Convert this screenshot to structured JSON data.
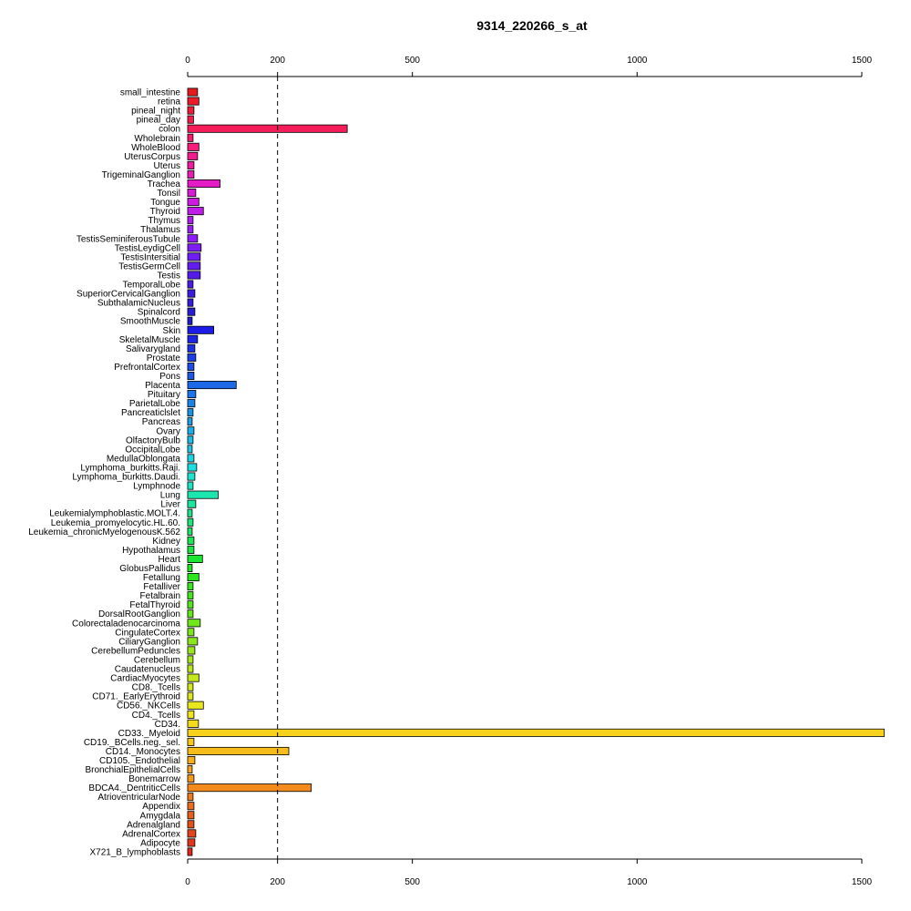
{
  "chart_data": {
    "type": "bar",
    "orientation": "horizontal",
    "title": "9314_220266_s_at",
    "xlim": [
      0,
      1500
    ],
    "x_ticks": [
      0,
      200,
      500,
      1000,
      1500
    ],
    "reference_line": 200,
    "categories": [
      "small_intestine",
      "retina",
      "pineal_night",
      "pineal_day",
      "colon",
      "Wholebrain",
      "WholeBlood",
      "UterusCorpus",
      "Uterus",
      "TrigeminalGanglion",
      "Trachea",
      "Tonsil",
      "Tongue",
      "Thyroid",
      "Thymus",
      "Thalamus",
      "TestisSeminiferousTubule",
      "TestisLeydigCell",
      "TestisIntersitial",
      "TestisGermCell",
      "Testis",
      "TemporalLobe",
      "SuperiorCervicalGanglion",
      "SubthalamicNucleus",
      "Spinalcord",
      "SmoothMuscle",
      "Skin",
      "SkeletalMuscle",
      "Salivarygland",
      "Prostate",
      "PrefrontalCortex",
      "Pons",
      "Placenta",
      "Pituitary",
      "ParietalLobe",
      "Pancreaticlslet",
      "Pancreas",
      "Ovary",
      "OlfactoryBulb",
      "OccipitalLobe",
      "MedullaOblongata",
      "Lymphoma_burkitts.Raji.",
      "Lymphoma_burkitts.Daudi.",
      "Lymphnode",
      "Lung",
      "Liver",
      "Leukemialymphoblastic.MOLT.4.",
      "Leukemia_promyelocytic.HL.60.",
      "Leukemia_chronicMyelogenousK.562",
      "Kidney",
      "Hypothalamus",
      "Heart",
      "GlobusPallidus",
      "Fetallung",
      "Fetalliver",
      "Fetalbrain",
      "FetalThyroid",
      "DorsalRootGanglion",
      "Colorectaladenocarcinoma",
      "CingulateCortex",
      "CiliaryGanglion",
      "CerebellumPeduncles",
      "Cerebellum",
      "Caudatenucleus",
      "CardiacMyocytes",
      "CD8._Tcells",
      "CD71._EarlyErythroid",
      "CD56._NKCells",
      "CD4._Tcells",
      "CD34.",
      "CD33._Myeloid",
      "CD19._BCells.neg._sel.",
      "CD14._Monocytes",
      "CD105._Endothelial",
      "BronchialEpithelialCells",
      "Bonemarrow",
      "BDCA4._DentriticCells",
      "AtrioventricularNode",
      "Appendix",
      "Amygdala",
      "Adrenalgland",
      "AdrenalCortex",
      "Adipocyte",
      "X721_B_lymphoblasts"
    ],
    "values": [
      22,
      25,
      14,
      13,
      355,
      12,
      25,
      22,
      14,
      14,
      72,
      18,
      25,
      35,
      12,
      12,
      22,
      30,
      28,
      28,
      28,
      12,
      16,
      12,
      16,
      10,
      58,
      22,
      16,
      18,
      14,
      14,
      108,
      18,
      16,
      12,
      10,
      14,
      12,
      10,
      14,
      20,
      16,
      12,
      68,
      18,
      10,
      12,
      10,
      14,
      14,
      33,
      10,
      25,
      12,
      12,
      12,
      12,
      28,
      14,
      22,
      16,
      12,
      12,
      25,
      12,
      12,
      35,
      14,
      24,
      1550,
      14,
      225,
      16,
      10,
      14,
      275,
      12,
      14,
      14,
      14,
      18,
      16,
      10
    ],
    "colors": [
      "#E41A1C",
      "#EA1C2A",
      "#EE1C38",
      "#F21C48",
      "#F51C5A",
      "#F51C6A",
      "#F51C7C",
      "#F21C8E",
      "#EE1CA0",
      "#EA1CB2",
      "#E41CC6",
      "#D91CD4",
      "#CC1CE0",
      "#BE1CE9",
      "#AE1CF0",
      "#9E1CF4",
      "#8E1CF6",
      "#7E1CF6",
      "#701CF4",
      "#621CF0",
      "#541CEA",
      "#481CE4",
      "#3C1CDE",
      "#321CD8",
      "#281CD2",
      "#1E1CCC",
      "#1C1CE6",
      "#1C24E6",
      "#1C30E6",
      "#1C3EE6",
      "#1C4CE6",
      "#1C5AE6",
      "#1C68E6",
      "#1C76E6",
      "#1C84E6",
      "#1C92E6",
      "#1CA0E6",
      "#1CAEE6",
      "#1CBCE6",
      "#1CC8E6",
      "#1CD4E6",
      "#1CDEE0",
      "#1CE4D2",
      "#1CE6C2",
      "#1CE6B0",
      "#1CE69E",
      "#1CE68C",
      "#1CE67A",
      "#1CE668",
      "#1CE656",
      "#1CE644",
      "#1CE632",
      "#1EE620",
      "#2AE61C",
      "#38E61C",
      "#46E61C",
      "#54E61C",
      "#62E61C",
      "#70E61C",
      "#7EE61C",
      "#8CE61C",
      "#9AE61C",
      "#A8E61C",
      "#B6E61C",
      "#C4E61C",
      "#D2E61C",
      "#DEE61C",
      "#E8E61C",
      "#F0E41C",
      "#F4DC1C",
      "#F6D21C",
      "#F6C81C",
      "#F6BC1C",
      "#F6B01C",
      "#F6A41C",
      "#F6981C",
      "#F28A1C",
      "#EE7C1C",
      "#EA6E1C",
      "#E6601C",
      "#E4521C",
      "#E2441C",
      "#E0361C",
      "#DE281C"
    ]
  }
}
